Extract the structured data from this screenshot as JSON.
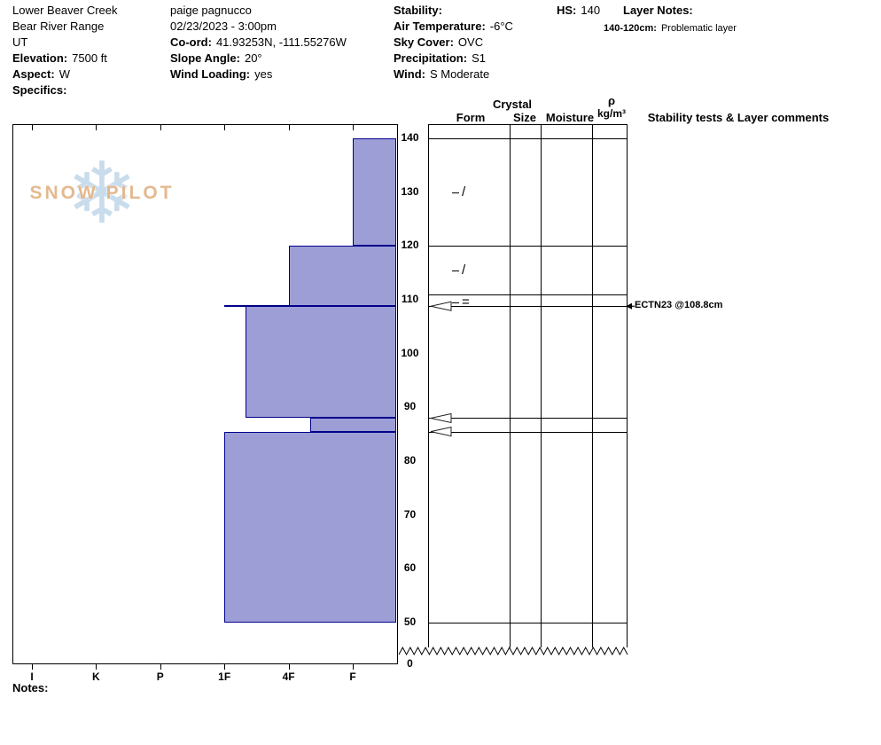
{
  "header": {
    "site": {
      "name": "Lower Beaver Creek",
      "range": "Bear River Range",
      "state": "UT",
      "elevation_label": "Elevation:",
      "elevation_value": "7500 ft",
      "aspect_label": "Aspect:",
      "aspect_value": "W",
      "specifics_label": "Specifics:",
      "specifics_value": ""
    },
    "observer": {
      "name": "paige pagnucco",
      "datetime": "02/23/2023 - 3:00pm",
      "coord_label": "Co-ord:",
      "coord_value": "41.93253N, -111.55276W",
      "slope_angle_label": "Slope Angle:",
      "slope_angle_value": "20°",
      "wind_loading_label": "Wind Loading:",
      "wind_loading_value": "yes"
    },
    "conditions": {
      "stability_label": "Stability:",
      "stability_value": "",
      "air_temp_label": "Air Temperature:",
      "air_temp_value": "-6°C",
      "sky_cover_label": "Sky Cover:",
      "sky_cover_value": "OVC",
      "precipitation_label": "Precipitation:",
      "precipitation_value": "S1",
      "wind_label": "Wind:",
      "wind_value": "S Moderate"
    },
    "hs_label": "HS:",
    "hs_value": "140",
    "layer_notes_label": "Layer Notes:",
    "layer_note_range": "140-120cm:",
    "layer_note_text": "Problematic layer"
  },
  "logo": {
    "snowflake": "❄",
    "title": "SNOW PILOT"
  },
  "column_headers": {
    "crystal": "Crystal",
    "form": "Form",
    "size": "Size",
    "moisture": "Moisture",
    "rho": "ρ",
    "rho_units": "kg/m³",
    "stability": "Stability tests & Layer comments"
  },
  "notes_label": "Notes:",
  "chart_data": {
    "type": "bar",
    "subtype": "snowpit-hardness-profile",
    "title": "Snow profile hardness vs depth",
    "depth_axis": {
      "unit": "cm",
      "surface": 140,
      "ticks": [
        140,
        130,
        120,
        110,
        100,
        90,
        80,
        70,
        60,
        50
      ],
      "break_label": "0"
    },
    "hardness_axis": {
      "ticks": [
        "I",
        "K",
        "P",
        "1F",
        "4F",
        "F"
      ]
    },
    "layers": [
      {
        "top_cm": 140,
        "bottom_cm": 120,
        "hardness": "F"
      },
      {
        "top_cm": 120,
        "bottom_cm": 108.8,
        "hardness": "4F"
      },
      {
        "top_cm": 108.8,
        "bottom_cm": 88,
        "hardness": "1F-"
      },
      {
        "top_cm": 88,
        "bottom_cm": 85.5,
        "hardness": "4F-"
      },
      {
        "top_cm": 85.5,
        "bottom_cm": 50,
        "hardness": "1F"
      }
    ],
    "failure_plane": {
      "depth_cm": 108.8,
      "hardness": "1F"
    },
    "grid_boundaries_cm": [
      140,
      120,
      111,
      108.8,
      88,
      85.5,
      50
    ],
    "form_symbols": [
      {
        "depth_cm": 130,
        "symbol": "/"
      },
      {
        "depth_cm": 115.5,
        "symbol": "/"
      },
      {
        "depth_cm": 109.5,
        "symbol": "="
      }
    ],
    "form_tick_depths_cm": [
      130,
      120,
      115.5,
      109.5
    ],
    "flag_depths_cm": [
      108.8,
      88,
      85.5
    ],
    "stability_tests": [
      {
        "depth_cm": 108.8,
        "label": "ECTN23 @108.8cm"
      }
    ],
    "colors": {
      "bar_fill": "#9e9ed6",
      "bar_border": "#00008b",
      "line": "#000000"
    }
  }
}
